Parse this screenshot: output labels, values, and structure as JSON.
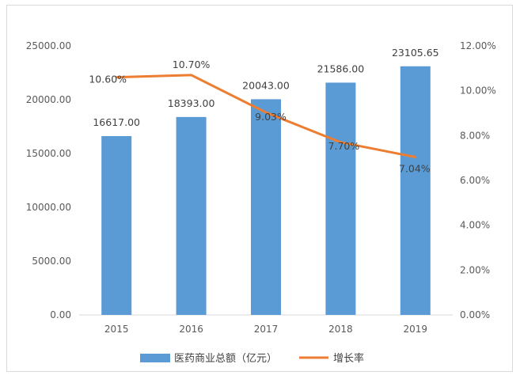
{
  "chart_data": {
    "type": "bar+line",
    "categories": [
      "2015",
      "2016",
      "2017",
      "2018",
      "2019"
    ],
    "series": [
      {
        "name": "医药商业总额（亿元）",
        "type": "bar",
        "axis": "left",
        "values": [
          16617.0,
          18393.0,
          20043.0,
          21586.0,
          23105.65
        ],
        "labels": [
          "16617.00",
          "18393.00",
          "20043.00",
          "21586.00",
          "23105.65"
        ],
        "color": "#5b9bd5"
      },
      {
        "name": "增长率",
        "type": "line",
        "axis": "right",
        "values": [
          10.6,
          10.7,
          9.03,
          7.7,
          7.04
        ],
        "labels": [
          "10.60%",
          "10.70%",
          "9.03%",
          "7.70%",
          "7.04%"
        ],
        "color": "#ed7d31"
      }
    ],
    "y_left": {
      "ylim": [
        0,
        25000
      ],
      "ticks": [
        "0.00",
        "5000.00",
        "10000.00",
        "15000.00",
        "20000.00",
        "25000.00"
      ]
    },
    "y_right": {
      "ylim": [
        0,
        12
      ],
      "ticks": [
        "0.00%",
        "2.00%",
        "4.00%",
        "6.00%",
        "8.00%",
        "10.00%",
        "12.00%"
      ]
    },
    "grid": false,
    "legend_position": "bottom"
  }
}
